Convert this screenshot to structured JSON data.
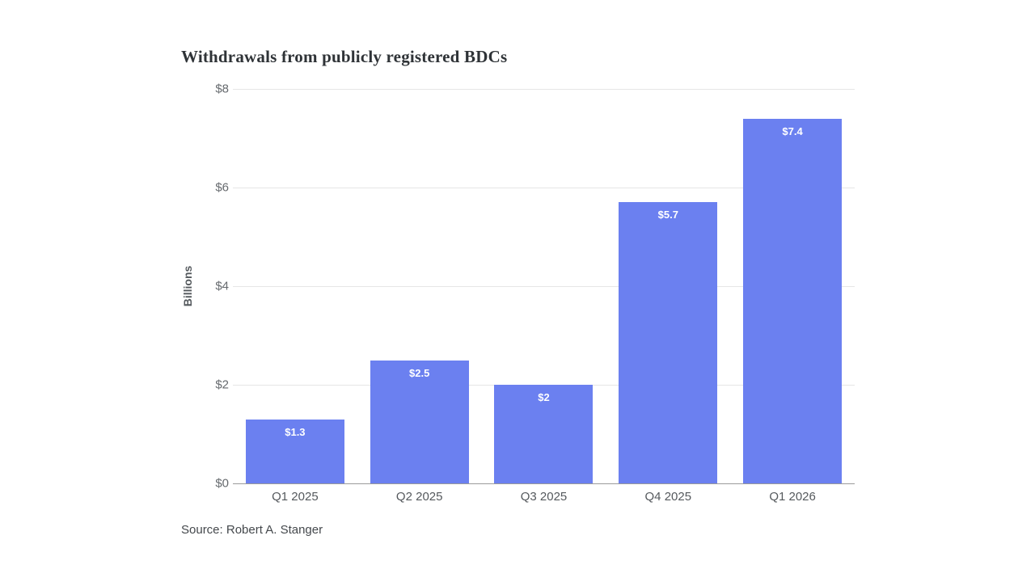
{
  "title": "Withdrawals from publicly registered BDCs",
  "source": "Source: Robert A. Stanger",
  "chart_data": {
    "type": "bar",
    "categories": [
      "Q1 2025",
      "Q2 2025",
      "Q3 2025",
      "Q4 2025",
      "Q1 2026"
    ],
    "values": [
      1.3,
      2.5,
      2,
      5.7,
      7.4
    ],
    "value_labels": [
      "$1.3",
      "$2.5",
      "$2",
      "$5.7",
      "$7.4"
    ],
    "title": "Withdrawals from publicly registered BDCs",
    "xlabel": "",
    "ylabel": "Billions",
    "ylim": [
      0,
      8
    ],
    "yticks": [
      0,
      2,
      4,
      6,
      8
    ],
    "ytick_labels": [
      "$0",
      "$2",
      "$4",
      "$6",
      "$8"
    ],
    "grid": "horizontal",
    "legend": "none",
    "bar_color": "#6b80f0",
    "label_color": "#ffffff"
  }
}
